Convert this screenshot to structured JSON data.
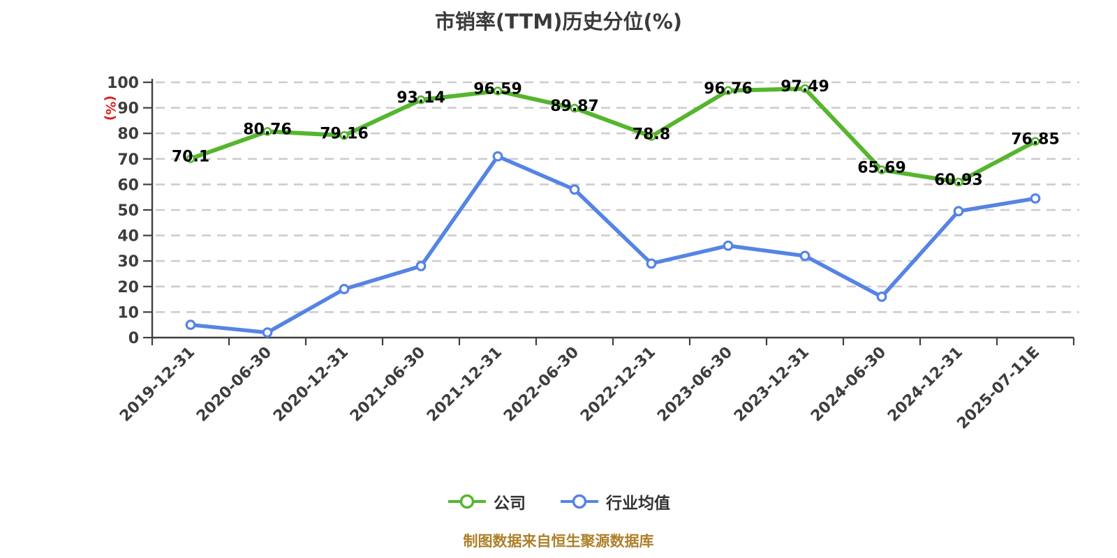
{
  "title": "市销率(TTM)历史分位(%)",
  "y_axis_name": "(%)",
  "footer": "制图数据来自恒生聚源数据库",
  "theme": {
    "title_color": "#3a3a3a",
    "axis_color": "#3f3f3f",
    "grid_color": "#cdcdcd",
    "tick_label_color": "#3d3d3d",
    "data_label_color": "#000000",
    "axis_name_color": "#e02020",
    "footer_color": "#ad802a",
    "company_green": "#55b62e",
    "industry_blue": "#5584e4"
  },
  "legend": {
    "items": [
      {
        "label": "公司",
        "color": "#55b62e"
      },
      {
        "label": "行业均值",
        "color": "#5584e4"
      }
    ]
  },
  "chart_data": {
    "type": "line",
    "title": "市销率(TTM)历史分位(%)",
    "xlabel": "",
    "ylabel": "(%)",
    "ylim": [
      0,
      100
    ],
    "ytick_step": 10,
    "grid": "horizontal dashed",
    "legend_position": "bottom",
    "categories": [
      "2019-12-31",
      "2020-06-30",
      "2020-12-31",
      "2021-06-30",
      "2021-12-31",
      "2022-06-30",
      "2022-12-31",
      "2023-06-30",
      "2023-12-31",
      "2024-06-30",
      "2024-12-31",
      "2025-07-11E"
    ],
    "series": [
      {
        "name": "公司",
        "color": "#55b62e",
        "marker": "hollow-circle",
        "data_labels": true,
        "values": [
          70.1,
          80.76,
          79.16,
          93.14,
          96.59,
          89.87,
          78.8,
          96.76,
          97.49,
          65.69,
          60.93,
          76.85
        ]
      },
      {
        "name": "行业均值",
        "color": "#5584e4",
        "marker": "hollow-circle",
        "data_labels": false,
        "values": [
          5,
          2,
          19,
          28,
          71,
          58,
          29,
          36,
          32,
          16,
          49.5,
          54.5
        ]
      }
    ]
  }
}
